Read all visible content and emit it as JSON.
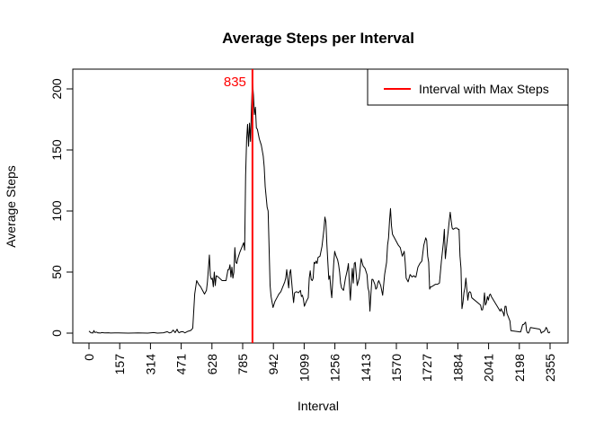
{
  "chart_data": {
    "type": "line",
    "title": "Average Steps per Interval",
    "xlabel": "Interval",
    "ylabel": "Average Steps",
    "xlim": [
      0,
      2355
    ],
    "ylim": [
      0,
      200
    ],
    "x_ticks": [
      0,
      157,
      314,
      471,
      628,
      785,
      942,
      1099,
      1256,
      1413,
      1570,
      1727,
      1884,
      2041,
      2198,
      2355
    ],
    "y_ticks": [
      0,
      50,
      100,
      150,
      200
    ],
    "grid": false,
    "legend": {
      "position": "top-right",
      "entries": [
        {
          "label": "Interval with Max Steps",
          "color": "#ff0000"
        }
      ]
    },
    "max_interval": {
      "x": 835,
      "label": "835",
      "color": "#ff0000"
    },
    "series": [
      {
        "color": "#000000",
        "points": [
          [
            0,
            1.7
          ],
          [
            10,
            0.3
          ],
          [
            20,
            0.1
          ],
          [
            25,
            2.1
          ],
          [
            30,
            0.5
          ],
          [
            40,
            0.8
          ],
          [
            45,
            0.2
          ],
          [
            50,
            0.3
          ],
          [
            55,
            0.1
          ],
          [
            60,
            0.1
          ],
          [
            65,
            0.5
          ],
          [
            80,
            0.2
          ],
          [
            100,
            0.3
          ],
          [
            110,
            0.1
          ],
          [
            150,
            0.2
          ],
          [
            200,
            0
          ],
          [
            230,
            0.1
          ],
          [
            250,
            0.2
          ],
          [
            300,
            0
          ],
          [
            330,
            0.5
          ],
          [
            350,
            0
          ],
          [
            380,
            0.3
          ],
          [
            400,
            1.2
          ],
          [
            410,
            0.2
          ],
          [
            420,
            0.5
          ],
          [
            430,
            2.5
          ],
          [
            440,
            0.4
          ],
          [
            450,
            3.2
          ],
          [
            455,
            1.2
          ],
          [
            460,
            0.3
          ],
          [
            470,
            1.1
          ],
          [
            480,
            1.2
          ],
          [
            490,
            0.2
          ],
          [
            505,
            1.5
          ],
          [
            520,
            2.2
          ],
          [
            530,
            4
          ],
          [
            540,
            32
          ],
          [
            550,
            43
          ],
          [
            560,
            40
          ],
          [
            570,
            38
          ],
          [
            580,
            35
          ],
          [
            590,
            32
          ],
          [
            600,
            35
          ],
          [
            605,
            42
          ],
          [
            610,
            53
          ],
          [
            615,
            64
          ],
          [
            620,
            47
          ],
          [
            625,
            44
          ],
          [
            630,
            45
          ],
          [
            635,
            38
          ],
          [
            640,
            50
          ],
          [
            645,
            39
          ],
          [
            650,
            47
          ],
          [
            660,
            46
          ],
          [
            680,
            43
          ],
          [
            700,
            43
          ],
          [
            710,
            52
          ],
          [
            715,
            52
          ],
          [
            720,
            56
          ],
          [
            725,
            46
          ],
          [
            730,
            54
          ],
          [
            735,
            45
          ],
          [
            740,
            50
          ],
          [
            745,
            70
          ],
          [
            750,
            58
          ],
          [
            755,
            57
          ],
          [
            760,
            61
          ],
          [
            770,
            66
          ],
          [
            780,
            70
          ],
          [
            790,
            74
          ],
          [
            795,
            68
          ],
          [
            800,
            129
          ],
          [
            805,
            158
          ],
          [
            810,
            171
          ],
          [
            815,
            153
          ],
          [
            820,
            172
          ],
          [
            825,
            157
          ],
          [
            830,
            185
          ],
          [
            835,
            206
          ],
          [
            840,
            195
          ],
          [
            845,
            179
          ],
          [
            850,
            185
          ],
          [
            855,
            168
          ],
          [
            860,
            167
          ],
          [
            870,
            159
          ],
          [
            880,
            154
          ],
          [
            890,
            145
          ],
          [
            895,
            136
          ],
          [
            900,
            120
          ],
          [
            910,
            103
          ],
          [
            915,
            100
          ],
          [
            925,
            39
          ],
          [
            930,
            30
          ],
          [
            940,
            21
          ],
          [
            950,
            26
          ],
          [
            960,
            29
          ],
          [
            970,
            32
          ],
          [
            980,
            34
          ],
          [
            990,
            38
          ],
          [
            1000,
            42
          ],
          [
            1005,
            45
          ],
          [
            1010,
            52
          ],
          [
            1015,
            44
          ],
          [
            1020,
            37
          ],
          [
            1025,
            49
          ],
          [
            1030,
            52
          ],
          [
            1040,
            33
          ],
          [
            1045,
            25
          ],
          [
            1050,
            33
          ],
          [
            1060,
            34
          ],
          [
            1070,
            33
          ],
          [
            1080,
            35
          ],
          [
            1085,
            30
          ],
          [
            1090,
            31
          ],
          [
            1095,
            28
          ],
          [
            1100,
            22
          ],
          [
            1110,
            26
          ],
          [
            1120,
            29
          ],
          [
            1125,
            45
          ],
          [
            1130,
            51
          ],
          [
            1135,
            44
          ],
          [
            1140,
            43
          ],
          [
            1145,
            45
          ],
          [
            1150,
            58
          ],
          [
            1155,
            57
          ],
          [
            1160,
            59
          ],
          [
            1165,
            57
          ],
          [
            1170,
            62
          ],
          [
            1180,
            63
          ],
          [
            1190,
            71
          ],
          [
            1200,
            85
          ],
          [
            1205,
            95
          ],
          [
            1210,
            91
          ],
          [
            1215,
            73
          ],
          [
            1220,
            58
          ],
          [
            1225,
            44
          ],
          [
            1230,
            47
          ],
          [
            1235,
            36
          ],
          [
            1240,
            29
          ],
          [
            1245,
            43
          ],
          [
            1250,
            57
          ],
          [
            1255,
            67
          ],
          [
            1260,
            64
          ],
          [
            1270,
            60
          ],
          [
            1275,
            56
          ],
          [
            1280,
            50
          ],
          [
            1285,
            41
          ],
          [
            1290,
            37
          ],
          [
            1300,
            35
          ],
          [
            1310,
            45
          ],
          [
            1320,
            52
          ],
          [
            1325,
            57
          ],
          [
            1330,
            40
          ],
          [
            1335,
            27
          ],
          [
            1340,
            41
          ],
          [
            1345,
            53
          ],
          [
            1350,
            41
          ],
          [
            1355,
            57
          ],
          [
            1360,
            58
          ],
          [
            1370,
            39
          ],
          [
            1375,
            42
          ],
          [
            1380,
            45
          ],
          [
            1390,
            61
          ],
          [
            1400,
            55
          ],
          [
            1410,
            53
          ],
          [
            1420,
            48
          ],
          [
            1425,
            37
          ],
          [
            1430,
            34
          ],
          [
            1435,
            18
          ],
          [
            1440,
            32
          ],
          [
            1445,
            44
          ],
          [
            1450,
            44
          ],
          [
            1460,
            40
          ],
          [
            1465,
            36
          ],
          [
            1470,
            37
          ],
          [
            1475,
            41
          ],
          [
            1480,
            43
          ],
          [
            1490,
            39
          ],
          [
            1500,
            31
          ],
          [
            1510,
            48
          ],
          [
            1520,
            58
          ],
          [
            1525,
            72
          ],
          [
            1530,
            78
          ],
          [
            1535,
            92
          ],
          [
            1540,
            102
          ],
          [
            1545,
            88
          ],
          [
            1550,
            81
          ],
          [
            1560,
            78
          ],
          [
            1570,
            75
          ],
          [
            1580,
            72
          ],
          [
            1590,
            70
          ],
          [
            1600,
            63
          ],
          [
            1610,
            67
          ],
          [
            1615,
            58
          ],
          [
            1620,
            45
          ],
          [
            1630,
            42
          ],
          [
            1640,
            48
          ],
          [
            1650,
            46
          ],
          [
            1660,
            47
          ],
          [
            1665,
            46
          ],
          [
            1670,
            46
          ],
          [
            1680,
            54
          ],
          [
            1690,
            57
          ],
          [
            1700,
            59
          ],
          [
            1710,
            72
          ],
          [
            1720,
            78
          ],
          [
            1725,
            76
          ],
          [
            1730,
            63
          ],
          [
            1735,
            58
          ],
          [
            1740,
            36
          ],
          [
            1745,
            38
          ],
          [
            1750,
            38
          ],
          [
            1760,
            39
          ],
          [
            1770,
            40
          ],
          [
            1780,
            40
          ],
          [
            1790,
            41
          ],
          [
            1800,
            59
          ],
          [
            1810,
            74
          ],
          [
            1815,
            85
          ],
          [
            1820,
            61
          ],
          [
            1825,
            69
          ],
          [
            1830,
            77
          ],
          [
            1835,
            84
          ],
          [
            1840,
            92
          ],
          [
            1845,
            99
          ],
          [
            1850,
            92
          ],
          [
            1855,
            86
          ],
          [
            1860,
            85
          ],
          [
            1870,
            86
          ],
          [
            1880,
            86
          ],
          [
            1885,
            85
          ],
          [
            1890,
            85
          ],
          [
            1895,
            63
          ],
          [
            1900,
            53
          ],
          [
            1905,
            20
          ],
          [
            1910,
            25
          ],
          [
            1915,
            33
          ],
          [
            1920,
            37
          ],
          [
            1925,
            45
          ],
          [
            1930,
            36
          ],
          [
            1935,
            27
          ],
          [
            1940,
            33
          ],
          [
            1945,
            34
          ],
          [
            1950,
            33
          ],
          [
            1955,
            29
          ],
          [
            2000,
            23
          ],
          [
            2005,
            19
          ],
          [
            2010,
            19
          ],
          [
            2015,
            23
          ],
          [
            2020,
            33
          ],
          [
            2025,
            23
          ],
          [
            2030,
            25
          ],
          [
            2035,
            30
          ],
          [
            2040,
            27
          ],
          [
            2045,
            31
          ],
          [
            2050,
            32
          ],
          [
            2055,
            30
          ],
          [
            2100,
            18
          ],
          [
            2105,
            20
          ],
          [
            2110,
            18
          ],
          [
            2115,
            17
          ],
          [
            2120,
            14
          ],
          [
            2125,
            22
          ],
          [
            2130,
            22
          ],
          [
            2135,
            16
          ],
          [
            2140,
            14
          ],
          [
            2145,
            12
          ],
          [
            2150,
            10
          ],
          [
            2155,
            2
          ],
          [
            2200,
            1
          ],
          [
            2205,
            1
          ],
          [
            2210,
            4
          ],
          [
            2215,
            7
          ],
          [
            2220,
            7
          ],
          [
            2225,
            8
          ],
          [
            2230,
            9
          ],
          [
            2235,
            2
          ],
          [
            2240,
            0.3
          ],
          [
            2245,
            0.1
          ],
          [
            2250,
            2
          ],
          [
            2255,
            4.6
          ],
          [
            2300,
            3.3
          ],
          [
            2305,
            2.8
          ],
          [
            2310,
            0
          ],
          [
            2315,
            0.8
          ],
          [
            2320,
            1
          ],
          [
            2325,
            1.6
          ],
          [
            2330,
            2.6
          ],
          [
            2335,
            4.7
          ],
          [
            2340,
            3.3
          ],
          [
            2345,
            0.6
          ],
          [
            2350,
            0.2
          ],
          [
            2355,
            1.1
          ]
        ]
      }
    ]
  }
}
